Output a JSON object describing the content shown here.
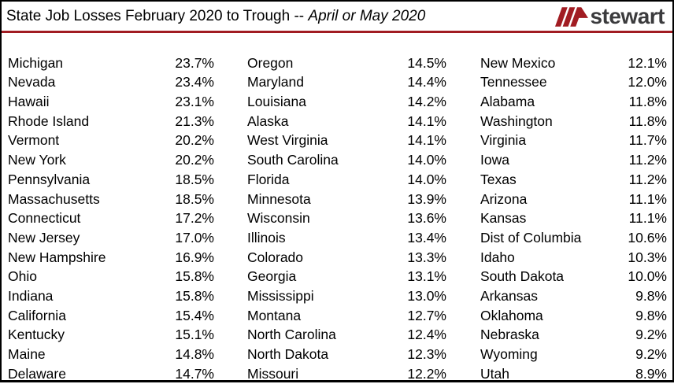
{
  "header": {
    "title_main": "State Job Losses February 2020 to Trough -- ",
    "title_emphasis": "April or May 2020",
    "logo_text": "stewart"
  },
  "colors": {
    "accent_red": "#a11c22",
    "logo_text_color": "#3b3b3d",
    "border_color": "#000000"
  },
  "chart_data": {
    "type": "table",
    "title": "State Job Losses February 2020 to Trough -- April or May 2020",
    "value_unit": "percent job loss",
    "columns": [
      {
        "rows": [
          {
            "state": "Michigan",
            "loss": "23.7%"
          },
          {
            "state": "Nevada",
            "loss": "23.4%"
          },
          {
            "state": "Hawaii",
            "loss": "23.1%"
          },
          {
            "state": "Rhode Island",
            "loss": "21.3%"
          },
          {
            "state": "Vermont",
            "loss": "20.2%"
          },
          {
            "state": "New York",
            "loss": "20.2%"
          },
          {
            "state": "Pennsylvania",
            "loss": "18.5%"
          },
          {
            "state": "Massachusetts",
            "loss": "18.5%"
          },
          {
            "state": "Connecticut",
            "loss": "17.2%"
          },
          {
            "state": "New Jersey",
            "loss": "17.0%"
          },
          {
            "state": "New Hampshire",
            "loss": "16.9%"
          },
          {
            "state": "Ohio",
            "loss": "15.8%"
          },
          {
            "state": "Indiana",
            "loss": "15.8%"
          },
          {
            "state": "California",
            "loss": "15.4%"
          },
          {
            "state": "Kentucky",
            "loss": "15.1%"
          },
          {
            "state": "Maine",
            "loss": "14.8%"
          },
          {
            "state": "Delaware",
            "loss": "14.7%"
          }
        ]
      },
      {
        "rows": [
          {
            "state": "Oregon",
            "loss": "14.5%"
          },
          {
            "state": "Maryland",
            "loss": "14.4%"
          },
          {
            "state": "Louisiana",
            "loss": "14.2%"
          },
          {
            "state": "Alaska",
            "loss": "14.1%"
          },
          {
            "state": "West Virginia",
            "loss": "14.1%"
          },
          {
            "state": "South Carolina",
            "loss": "14.0%"
          },
          {
            "state": "Florida",
            "loss": "14.0%"
          },
          {
            "state": "Minnesota",
            "loss": "13.9%"
          },
          {
            "state": "Wisconsin",
            "loss": "13.6%"
          },
          {
            "state": "Illinois",
            "loss": "13.4%"
          },
          {
            "state": "Colorado",
            "loss": "13.3%"
          },
          {
            "state": "Georgia",
            "loss": "13.1%"
          },
          {
            "state": "Mississippi",
            "loss": "13.0%"
          },
          {
            "state": "Montana",
            "loss": "12.7%"
          },
          {
            "state": "North Carolina",
            "loss": "12.4%"
          },
          {
            "state": "North Dakota",
            "loss": "12.3%"
          },
          {
            "state": "Missouri",
            "loss": "12.2%"
          }
        ]
      },
      {
        "rows": [
          {
            "state": "New Mexico",
            "loss": "12.1%"
          },
          {
            "state": "Tennessee",
            "loss": "12.0%"
          },
          {
            "state": "Alabama",
            "loss": "11.8%"
          },
          {
            "state": "Washington",
            "loss": "11.8%"
          },
          {
            "state": "Virginia",
            "loss": "11.7%"
          },
          {
            "state": "Iowa",
            "loss": "11.2%"
          },
          {
            "state": "Texas",
            "loss": "11.2%"
          },
          {
            "state": "Arizona",
            "loss": "11.1%"
          },
          {
            "state": "Kansas",
            "loss": "11.1%"
          },
          {
            "state": "Dist of Columbia",
            "loss": "10.6%"
          },
          {
            "state": "Idaho",
            "loss": "10.3%"
          },
          {
            "state": "South Dakota",
            "loss": "10.0%"
          },
          {
            "state": "Arkansas",
            "loss": "9.8%"
          },
          {
            "state": "Oklahoma",
            "loss": "9.8%"
          },
          {
            "state": "Nebraska",
            "loss": "9.2%"
          },
          {
            "state": "Wyoming",
            "loss": "9.2%"
          },
          {
            "state": "Utah",
            "loss": "8.9%"
          }
        ]
      }
    ]
  }
}
